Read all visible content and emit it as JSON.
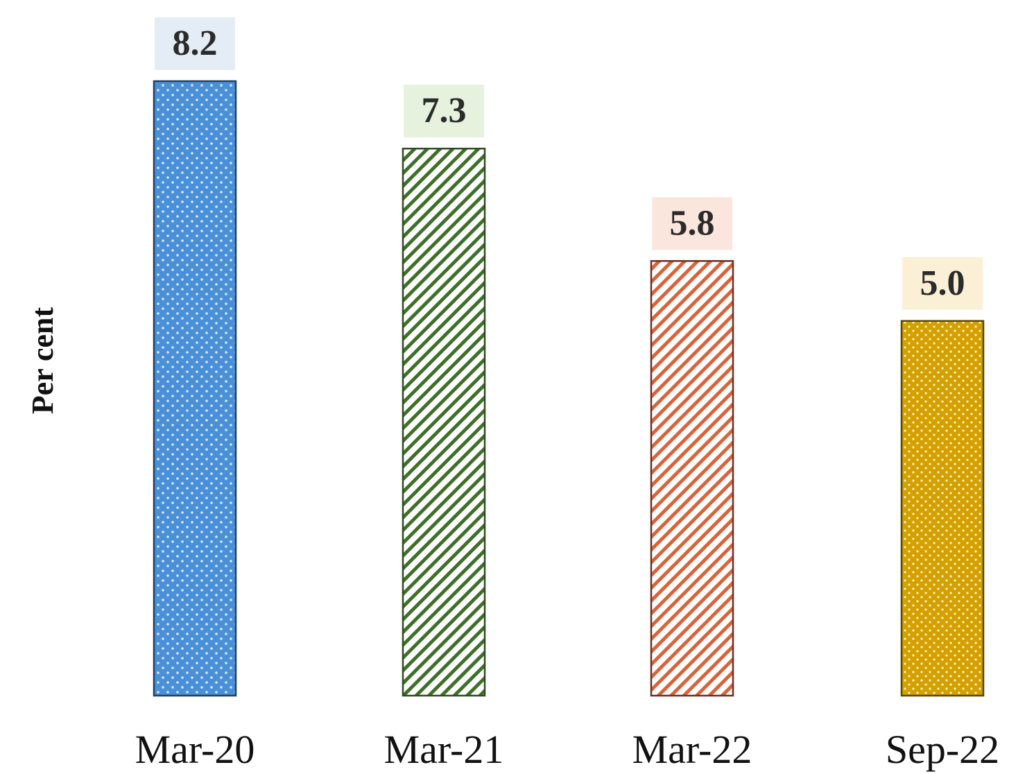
{
  "chart_data": {
    "type": "bar",
    "title": "",
    "xlabel": "",
    "ylabel": "Per cent",
    "categories": [
      "Mar-20",
      "Mar-21",
      "Mar-22",
      "Sep-22"
    ],
    "values": [
      8.2,
      7.3,
      5.8,
      5.0
    ],
    "data_labels": [
      "8.2",
      "7.3",
      "5.8",
      "5.0"
    ],
    "ylim": [
      0,
      8.2
    ],
    "grid": false,
    "legend": "none",
    "bar_colors": [
      "#4a90d9",
      "#3f6f2a",
      "#d9633a",
      "#d4a000"
    ],
    "bar_patterns": [
      "dots",
      "diagonal-hatch",
      "diagonal-hatch",
      "dots"
    ],
    "label_box_colors": [
      "#e4edf6",
      "#e6f1de",
      "#fbe6de",
      "#fbf0d6"
    ]
  }
}
